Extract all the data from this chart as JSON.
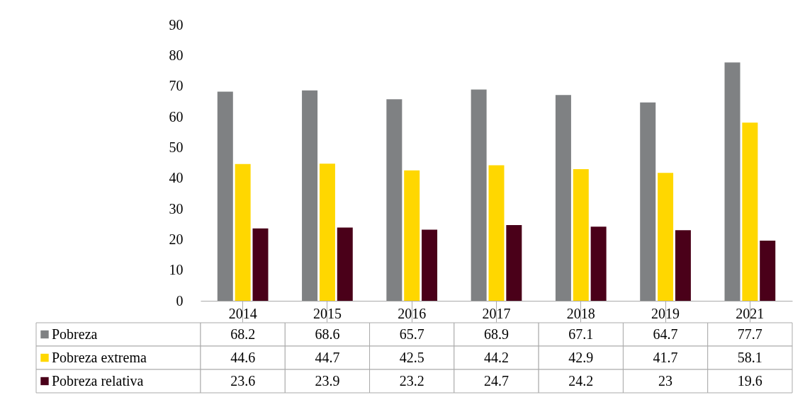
{
  "chart_data": {
    "type": "bar",
    "categories": [
      "2014",
      "2015",
      "2016",
      "2017",
      "2018",
      "2019",
      "2021"
    ],
    "series": [
      {
        "name": "Pobreza",
        "color": "#7f8183",
        "values": [
          68.2,
          68.6,
          65.7,
          68.9,
          67.1,
          64.7,
          77.7
        ]
      },
      {
        "name": "Pobreza extrema",
        "color": "#ffd700",
        "values": [
          44.6,
          44.7,
          42.5,
          44.2,
          42.9,
          41.7,
          58.1
        ]
      },
      {
        "name": "Pobreza relativa",
        "color": "#4a0019",
        "values": [
          23.6,
          23.9,
          23.2,
          24.7,
          24.2,
          23,
          19.6
        ]
      }
    ],
    "ylim": [
      0,
      90
    ],
    "yticks": [
      0,
      10,
      20,
      30,
      40,
      50,
      60,
      70,
      80,
      90
    ],
    "grid": false,
    "data_labels": true,
    "legend": "bottom"
  }
}
